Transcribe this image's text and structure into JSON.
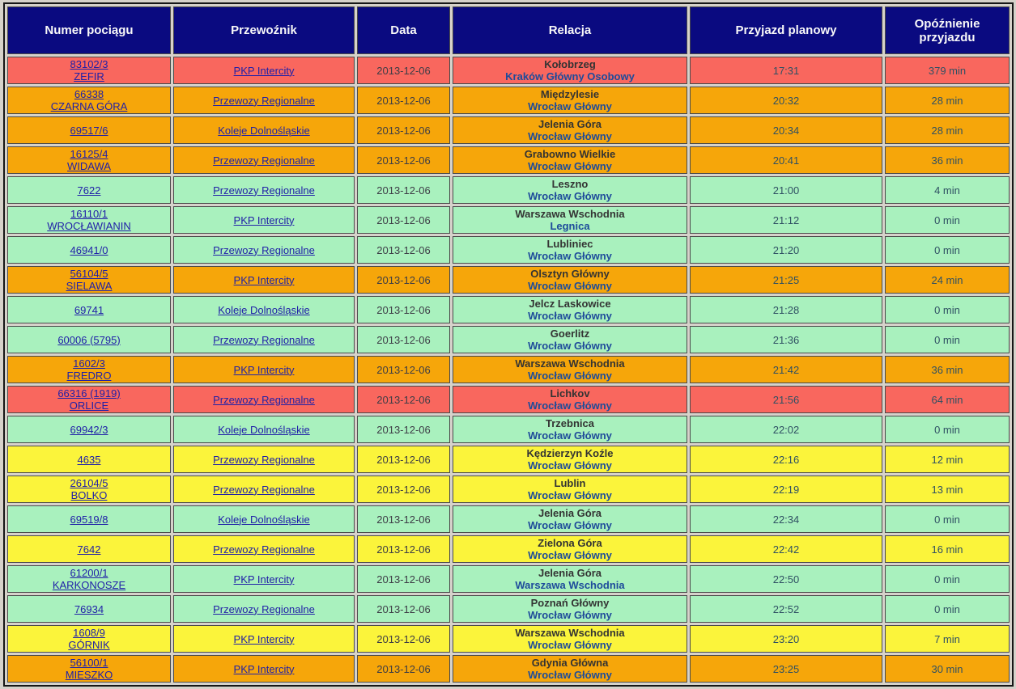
{
  "colors": {
    "page_bg": "#D6D2CA",
    "header_bg": "#0A0A80",
    "header_text": "#F8F8F8",
    "row_red": "#F9675E",
    "row_orange": "#F6A60A",
    "row_green": "#A9F1BE",
    "row_yellow": "#FBF43B",
    "border_cell": "#4A4A4A",
    "border_outer": "#161616",
    "link": "#2020A8",
    "date_text": "#3C3C46",
    "time_text": "#2F5063",
    "origin_text": "#333333",
    "dest_text": "#1D4B9B"
  },
  "table": {
    "columns": [
      "Numer pociągu",
      "Przewoźnik",
      "Data",
      "Relacja",
      "Przyjazd planowy",
      "Opóźnienie przyjazdu"
    ],
    "rows": [
      {
        "train_number": "83102/3",
        "train_name": "ZEFIR",
        "carrier": "PKP Intercity",
        "date": "2013-12-06",
        "origin": "Kołobrzeg",
        "destination": "Kraków Główny Osobowy",
        "arrival_planned": "17:31",
        "arrival_delay": "379 min",
        "status_color": "red"
      },
      {
        "train_number": "66338",
        "train_name": "CZARNA GÓRA",
        "carrier": "Przewozy Regionalne",
        "date": "2013-12-06",
        "origin": "Międzylesie",
        "destination": "Wrocław Główny",
        "arrival_planned": "20:32",
        "arrival_delay": "28 min",
        "status_color": "orange"
      },
      {
        "train_number": "69517/6",
        "train_name": "",
        "carrier": "Koleje Dolnośląskie",
        "date": "2013-12-06",
        "origin": "Jelenia Góra",
        "destination": "Wrocław Główny",
        "arrival_planned": "20:34",
        "arrival_delay": "28 min",
        "status_color": "orange"
      },
      {
        "train_number": "16125/4",
        "train_name": "WIDAWA",
        "carrier": "Przewozy Regionalne",
        "date": "2013-12-06",
        "origin": "Grabowno Wielkie",
        "destination": "Wrocław Główny",
        "arrival_planned": "20:41",
        "arrival_delay": "36 min",
        "status_color": "orange"
      },
      {
        "train_number": "7622",
        "train_name": "",
        "carrier": "Przewozy Regionalne",
        "date": "2013-12-06",
        "origin": "Leszno",
        "destination": "Wrocław Główny",
        "arrival_planned": "21:00",
        "arrival_delay": "4 min",
        "status_color": "green"
      },
      {
        "train_number": "16110/1",
        "train_name": "WROCŁAWIANIN",
        "carrier": "PKP Intercity",
        "date": "2013-12-06",
        "origin": "Warszawa Wschodnia",
        "destination": "Legnica",
        "arrival_planned": "21:12",
        "arrival_delay": "0 min",
        "status_color": "green"
      },
      {
        "train_number": "46941/0",
        "train_name": "",
        "carrier": "Przewozy Regionalne",
        "date": "2013-12-06",
        "origin": "Lubliniec",
        "destination": "Wrocław Główny",
        "arrival_planned": "21:20",
        "arrival_delay": "0 min",
        "status_color": "green"
      },
      {
        "train_number": "56104/5",
        "train_name": "SIELAWA",
        "carrier": "PKP Intercity",
        "date": "2013-12-06",
        "origin": "Olsztyn Główny",
        "destination": "Wrocław Główny",
        "arrival_planned": "21:25",
        "arrival_delay": "24 min",
        "status_color": "orange"
      },
      {
        "train_number": "69741",
        "train_name": "",
        "carrier": "Koleje Dolnośląskie",
        "date": "2013-12-06",
        "origin": "Jelcz Laskowice",
        "destination": "Wrocław Główny",
        "arrival_planned": "21:28",
        "arrival_delay": "0 min",
        "status_color": "green"
      },
      {
        "train_number": "60006 (5795)",
        "train_name": "",
        "carrier": "Przewozy Regionalne",
        "date": "2013-12-06",
        "origin": "Goerlitz",
        "destination": "Wrocław Główny",
        "arrival_planned": "21:36",
        "arrival_delay": "0 min",
        "status_color": "green"
      },
      {
        "train_number": "1602/3",
        "train_name": "FREDRO",
        "carrier": "PKP Intercity",
        "date": "2013-12-06",
        "origin": "Warszawa Wschodnia",
        "destination": "Wrocław Główny",
        "arrival_planned": "21:42",
        "arrival_delay": "36 min",
        "status_color": "orange"
      },
      {
        "train_number": "66316 (1919)",
        "train_name": "ORLICE",
        "carrier": "Przewozy Regionalne",
        "date": "2013-12-06",
        "origin": "Lichkov",
        "destination": "Wrocław Główny",
        "arrival_planned": "21:56",
        "arrival_delay": "64 min",
        "status_color": "red"
      },
      {
        "train_number": "69942/3",
        "train_name": "",
        "carrier": "Koleje Dolnośląskie",
        "date": "2013-12-06",
        "origin": "Trzebnica",
        "destination": "Wrocław Główny",
        "arrival_planned": "22:02",
        "arrival_delay": "0 min",
        "status_color": "green"
      },
      {
        "train_number": "4635",
        "train_name": "",
        "carrier": "Przewozy Regionalne",
        "date": "2013-12-06",
        "origin": "Kędzierzyn Koźle",
        "destination": "Wrocław Główny",
        "arrival_planned": "22:16",
        "arrival_delay": "12 min",
        "status_color": "yellow"
      },
      {
        "train_number": "26104/5",
        "train_name": "BOLKO",
        "carrier": "Przewozy Regionalne",
        "date": "2013-12-06",
        "origin": "Lublin",
        "destination": "Wrocław Główny",
        "arrival_planned": "22:19",
        "arrival_delay": "13 min",
        "status_color": "yellow"
      },
      {
        "train_number": "69519/8",
        "train_name": "",
        "carrier": "Koleje Dolnośląskie",
        "date": "2013-12-06",
        "origin": "Jelenia Góra",
        "destination": "Wrocław Główny",
        "arrival_planned": "22:34",
        "arrival_delay": "0 min",
        "status_color": "green"
      },
      {
        "train_number": "7642",
        "train_name": "",
        "carrier": "Przewozy Regionalne",
        "date": "2013-12-06",
        "origin": "Zielona Góra",
        "destination": "Wrocław Główny",
        "arrival_planned": "22:42",
        "arrival_delay": "16 min",
        "status_color": "yellow"
      },
      {
        "train_number": "61200/1",
        "train_name": "KARKONOSZE",
        "carrier": "PKP Intercity",
        "date": "2013-12-06",
        "origin": "Jelenia Góra",
        "destination": "Warszawa Wschodnia",
        "arrival_planned": "22:50",
        "arrival_delay": "0 min",
        "status_color": "green"
      },
      {
        "train_number": "76934",
        "train_name": "",
        "carrier": "Przewozy Regionalne",
        "date": "2013-12-06",
        "origin": "Poznań Główny",
        "destination": "Wrocław Główny",
        "arrival_planned": "22:52",
        "arrival_delay": "0 min",
        "status_color": "green"
      },
      {
        "train_number": "1608/9",
        "train_name": "GÓRNIK",
        "carrier": "PKP Intercity",
        "date": "2013-12-06",
        "origin": "Warszawa Wschodnia",
        "destination": "Wrocław Główny",
        "arrival_planned": "23:20",
        "arrival_delay": "7 min",
        "status_color": "yellow"
      },
      {
        "train_number": "56100/1",
        "train_name": "MIESZKO",
        "carrier": "PKP Intercity",
        "date": "2013-12-06",
        "origin": "Gdynia Główna",
        "destination": "Wrocław Główny",
        "arrival_planned": "23:25",
        "arrival_delay": "30 min",
        "status_color": "orange"
      }
    ]
  }
}
